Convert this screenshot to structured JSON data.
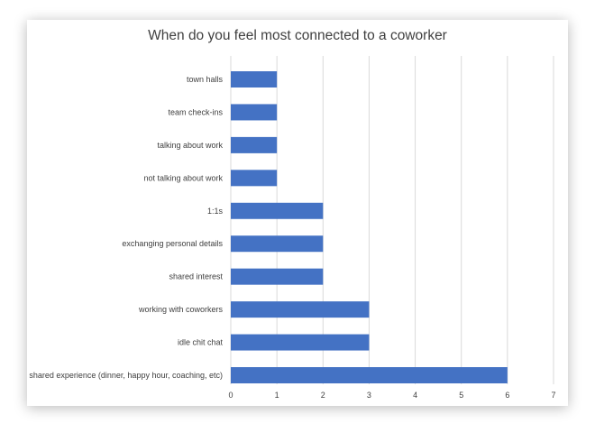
{
  "chart_data": {
    "type": "bar",
    "orientation": "horizontal",
    "title": "When do you feel most connected to a coworker",
    "xlabel": "",
    "ylabel": "",
    "categories": [
      "town halls",
      "team check-ins",
      "talking about work",
      "not talking about work",
      "1:1s",
      "exchanging personal details",
      "shared interest",
      "working with coworkers",
      "idle chit chat",
      "shared experience (dinner, happy hour, coaching, etc)"
    ],
    "values": [
      1,
      1,
      1,
      1,
      2,
      2,
      2,
      3,
      3,
      6
    ],
    "xlim": [
      0,
      7
    ],
    "xticks": [
      "0",
      "1",
      "2",
      "3",
      "4",
      "5",
      "6",
      "7"
    ],
    "grid": true,
    "legend": "none",
    "bar_color": "#4472C4",
    "grid_color": "#d9d9d9"
  }
}
